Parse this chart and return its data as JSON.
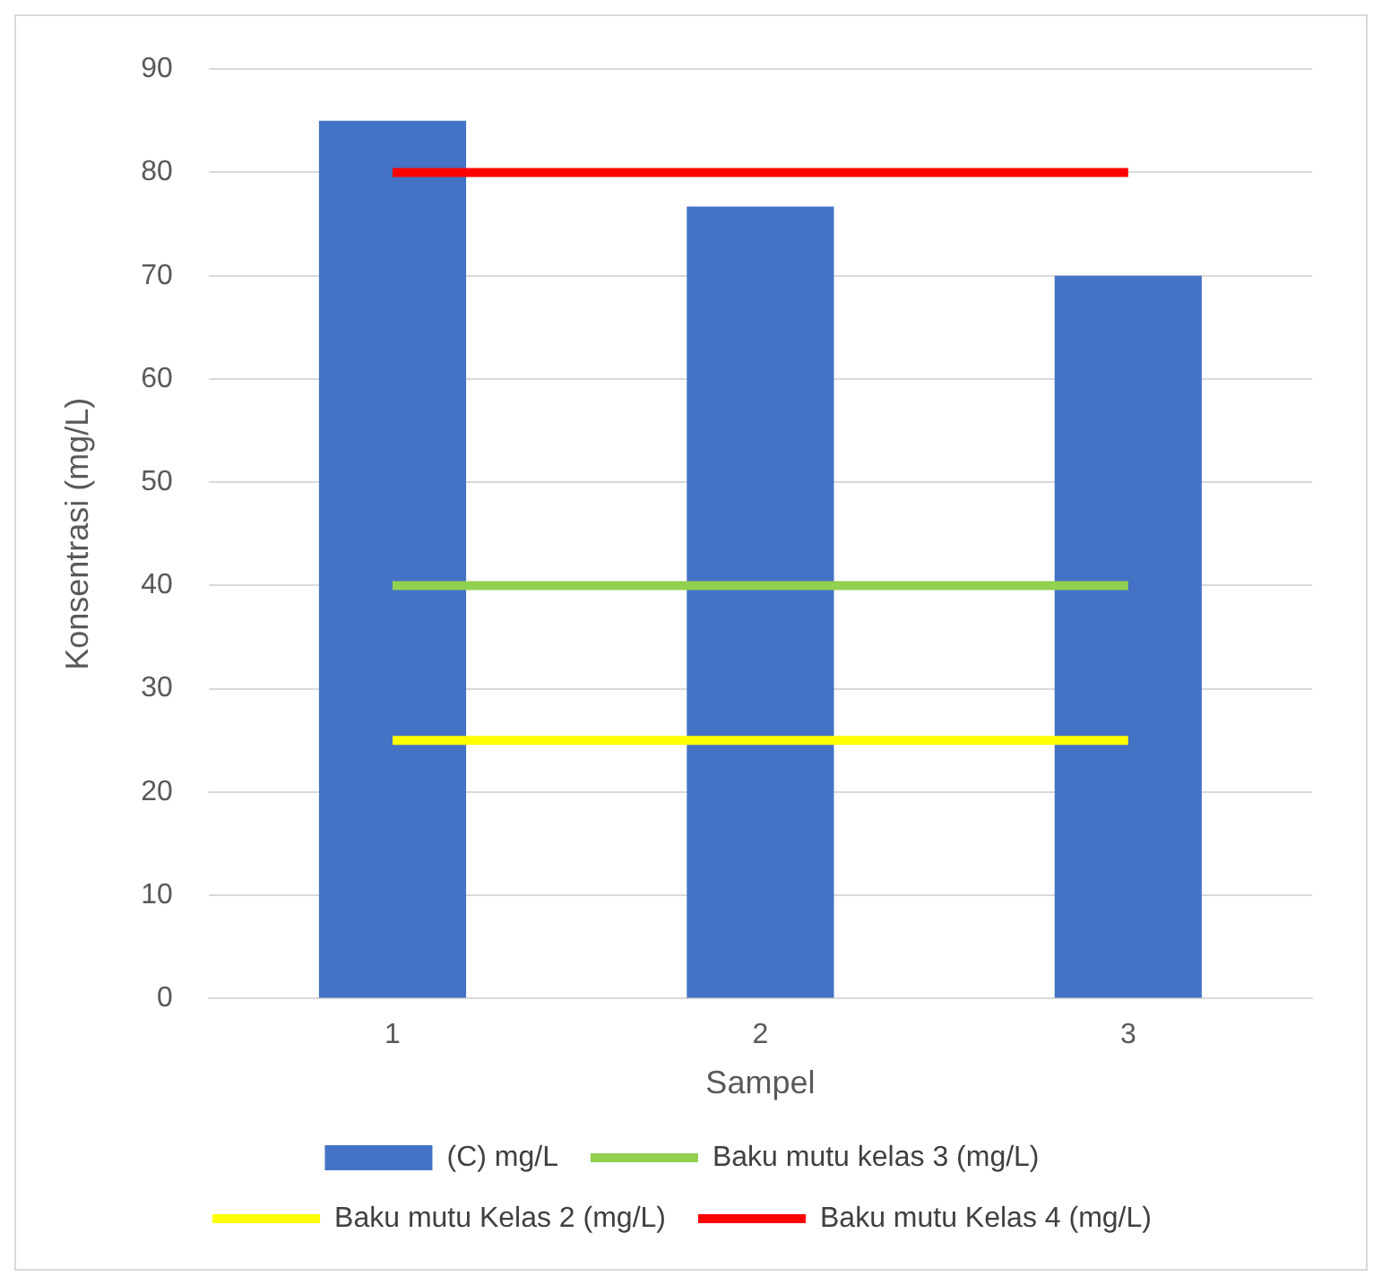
{
  "chart_data": {
    "type": "bar",
    "xlabel": "Sampel",
    "ylabel": "Konsentrasi (mg/L)",
    "categories": [
      "1",
      "2",
      "3"
    ],
    "series": [
      {
        "name": "(C) mg/L",
        "color": "#4472c4",
        "values": [
          85,
          76.7,
          70
        ]
      },
      {
        "name": "Baku mutu kelas 3 (mg/L)",
        "type": "line",
        "color": "#92d050",
        "values": [
          40,
          40,
          40
        ]
      },
      {
        "name": "Baku mutu Kelas 2 (mg/L)",
        "type": "line",
        "color": "#ffff00",
        "values": [
          25,
          25,
          25
        ]
      },
      {
        "name": "Baku mutu Kelas 4 (mg/L)",
        "type": "line",
        "color": "#ff0000",
        "values": [
          80,
          80,
          80
        ]
      }
    ],
    "ylim": [
      0,
      90
    ],
    "yticks": [
      0,
      10,
      20,
      30,
      40,
      50,
      60,
      70,
      80,
      90
    ],
    "grid": "y",
    "legend": "bottom",
    "marker": "none",
    "line_style": "solid"
  }
}
